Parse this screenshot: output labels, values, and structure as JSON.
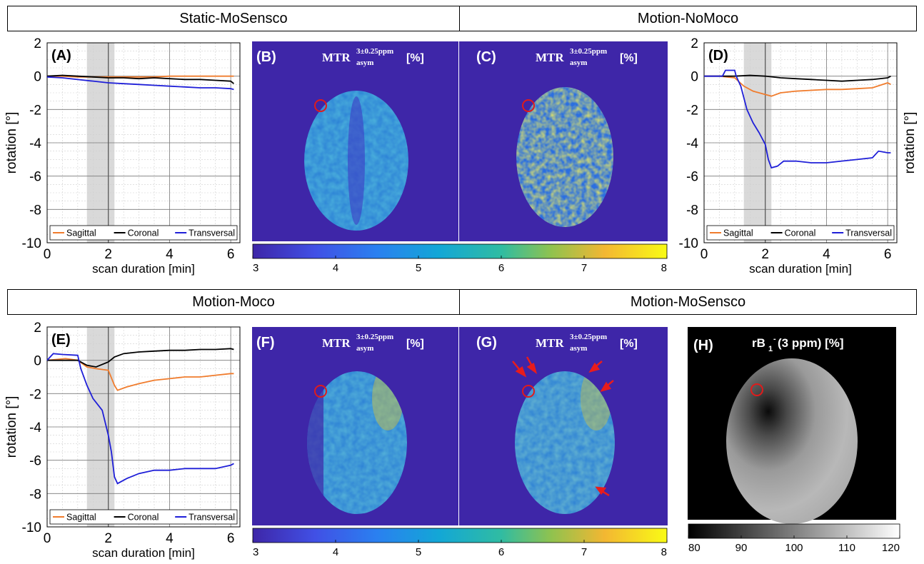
{
  "sections": [
    {
      "id": "top-left",
      "title": "Static-MoSensco"
    },
    {
      "id": "top-right",
      "title": "Motion-NoMoco"
    },
    {
      "id": "bottom-left",
      "title": "Motion-Moco"
    },
    {
      "id": "bottom-right",
      "title": "Motion-MoSensco"
    }
  ],
  "chart_data": [
    {
      "type": "line",
      "panel_label": "(A)",
      "xlabel": "scan duration [min]",
      "ylabel": "rotation [°]",
      "xlim": [
        0,
        6.3
      ],
      "ylim": [
        -10,
        2
      ],
      "xticks": [
        0,
        2,
        4,
        6
      ],
      "yticks": [
        2,
        0,
        -2,
        -4,
        -6,
        -8,
        -10
      ],
      "grid": true,
      "shaded_region": [
        1.3,
        2.2
      ],
      "marker_line": 2.0,
      "legend_position": "bottom",
      "series": [
        {
          "name": "Sagittal",
          "color": "#f07c2d",
          "x": [
            0,
            0.5,
            1,
            1.5,
            2,
            2.5,
            3,
            3.5,
            4,
            4.5,
            5,
            5.5,
            6,
            6.1
          ],
          "y": [
            0,
            0,
            -0.05,
            -0.05,
            -0.05,
            -0.05,
            -0.05,
            -0.05,
            0,
            0,
            0,
            0,
            0,
            0
          ]
        },
        {
          "name": "Coronal",
          "color": "#000000",
          "x": [
            0,
            0.5,
            1,
            1.5,
            2,
            2.5,
            3,
            3.5,
            4,
            4.5,
            5,
            5.5,
            6,
            6.1
          ],
          "y": [
            0,
            0.05,
            0,
            -0.05,
            -0.1,
            -0.1,
            -0.15,
            -0.1,
            -0.15,
            -0.2,
            -0.2,
            -0.25,
            -0.3,
            -0.45
          ]
        },
        {
          "name": "Transversal",
          "color": "#1f1fd8",
          "x": [
            0,
            0.5,
            1,
            1.5,
            2,
            2.5,
            3,
            3.5,
            4,
            4.5,
            5,
            5.5,
            6,
            6.1
          ],
          "y": [
            -0.05,
            -0.1,
            -0.2,
            -0.3,
            -0.4,
            -0.45,
            -0.5,
            -0.55,
            -0.6,
            -0.65,
            -0.7,
            -0.7,
            -0.75,
            -0.8
          ]
        }
      ]
    },
    {
      "type": "line",
      "panel_label": "(D)",
      "xlabel": "scan duration [min]",
      "ylabel": "rotation [°]",
      "xlim": [
        0,
        6.3
      ],
      "ylim": [
        -10,
        2
      ],
      "xticks": [
        0,
        2,
        4,
        6
      ],
      "yticks": [
        2,
        0,
        -2,
        -4,
        -6,
        -8,
        -10
      ],
      "grid": true,
      "shaded_region": [
        1.3,
        2.2
      ],
      "marker_line": 2.0,
      "legend_position": "bottom",
      "series": [
        {
          "name": "Sagittal",
          "color": "#f07c2d",
          "x": [
            0,
            0.5,
            1,
            1.3,
            1.6,
            2,
            2.2,
            2.5,
            3,
            3.5,
            4,
            4.5,
            5,
            5.5,
            6,
            6.1
          ],
          "y": [
            0,
            0,
            -0.1,
            -0.6,
            -0.9,
            -1.1,
            -1.2,
            -1.0,
            -0.9,
            -0.85,
            -0.8,
            -0.8,
            -0.75,
            -0.7,
            -0.4,
            -0.5
          ]
        },
        {
          "name": "Coronal",
          "color": "#000000",
          "x": [
            0,
            0.5,
            1,
            1.5,
            2,
            2.5,
            3,
            3.5,
            4,
            4.5,
            5,
            5.5,
            6,
            6.1
          ],
          "y": [
            0,
            0,
            0,
            0.05,
            0,
            -0.1,
            -0.15,
            -0.2,
            -0.25,
            -0.3,
            -0.25,
            -0.2,
            -0.1,
            0
          ]
        },
        {
          "name": "Transversal",
          "color": "#1f1fd8",
          "x": [
            0,
            0.3,
            0.6,
            0.7,
            1.0,
            1.05,
            1.2,
            1.4,
            1.6,
            1.8,
            2.0,
            2.1,
            2.2,
            2.4,
            2.6,
            3,
            3.5,
            4,
            4.5,
            5,
            5.5,
            5.7,
            6,
            6.1
          ],
          "y": [
            0,
            0,
            0,
            0.35,
            0.35,
            0,
            -0.6,
            -2.0,
            -2.8,
            -3.4,
            -4.1,
            -5.0,
            -5.5,
            -5.4,
            -5.1,
            -5.1,
            -5.2,
            -5.2,
            -5.1,
            -5.0,
            -4.9,
            -4.5,
            -4.6,
            -4.6
          ]
        }
      ]
    },
    {
      "type": "line",
      "panel_label": "(E)",
      "xlabel": "scan duration [min]",
      "ylabel": "rotation [°]",
      "xlim": [
        0,
        6.3
      ],
      "ylim": [
        -10,
        2
      ],
      "xticks": [
        0,
        2,
        4,
        6
      ],
      "yticks": [
        2,
        0,
        -2,
        -4,
        -6,
        -8,
        -10
      ],
      "grid": true,
      "shaded_region": [
        1.3,
        2.2
      ],
      "marker_line": 2.0,
      "legend_position": "bottom",
      "series": [
        {
          "name": "Sagittal",
          "color": "#f07c2d",
          "x": [
            0,
            0.3,
            0.6,
            1,
            1.3,
            1.6,
            2,
            2.2,
            2.3,
            2.6,
            3,
            3.5,
            4,
            4.5,
            5,
            5.5,
            6,
            6.1
          ],
          "y": [
            0,
            0.05,
            0.1,
            0,
            -0.4,
            -0.5,
            -0.6,
            -1.5,
            -1.8,
            -1.6,
            -1.4,
            -1.2,
            -1.1,
            -1.0,
            -1.0,
            -0.9,
            -0.8,
            -0.8
          ]
        },
        {
          "name": "Coronal",
          "color": "#000000",
          "x": [
            0,
            0.5,
            1,
            1.3,
            1.6,
            2,
            2.2,
            2.5,
            3,
            3.5,
            4,
            4.5,
            5,
            5.5,
            6,
            6.1
          ],
          "y": [
            0,
            0,
            0,
            -0.3,
            -0.4,
            -0.1,
            0.2,
            0.4,
            0.5,
            0.55,
            0.6,
            0.6,
            0.65,
            0.65,
            0.7,
            0.65
          ]
        },
        {
          "name": "Transversal",
          "color": "#1f1fd8",
          "x": [
            0,
            0.2,
            0.5,
            1.0,
            1.1,
            1.3,
            1.5,
            1.8,
            2.0,
            2.1,
            2.2,
            2.3,
            2.6,
            3,
            3.5,
            4,
            4.5,
            5,
            5.5,
            6,
            6.1
          ],
          "y": [
            0,
            0.4,
            0.35,
            0.3,
            -0.5,
            -1.5,
            -2.3,
            -3.0,
            -4.5,
            -5.5,
            -7.0,
            -7.4,
            -7.1,
            -6.8,
            -6.6,
            -6.6,
            -6.5,
            -6.5,
            -6.5,
            -6.3,
            -6.2
          ]
        }
      ]
    },
    {
      "type": "heatmap",
      "panel_label": "(B)",
      "title": "MTR asym 3±0.25ppm [%]"
    },
    {
      "type": "heatmap",
      "panel_label": "(C)",
      "title": "MTR asym 3±0.25ppm [%]"
    },
    {
      "type": "heatmap",
      "panel_label": "(F)",
      "title": "MTR asym 3±0.25ppm [%]"
    },
    {
      "type": "heatmap",
      "panel_label": "(G)",
      "title": "MTR asym 3±0.25ppm [%]"
    },
    {
      "type": "heatmap",
      "panel_label": "(H)",
      "title": "rB1-(3 ppm) [%]"
    }
  ],
  "colorbars": {
    "mtr": {
      "ticks": [
        "3",
        "4",
        "5",
        "6",
        "7",
        "8"
      ]
    },
    "rb1": {
      "ticks": [
        "80",
        "90",
        "100",
        "110",
        "120"
      ]
    }
  },
  "mtr_title": {
    "main": "MTR",
    "sup": "3±0.25ppm",
    "sub": "asym",
    "unit": "[%]"
  },
  "rb1_title": {
    "main": "rB",
    "sub": "1",
    "sup": "-",
    "rest": "(3 ppm) [%]"
  },
  "colors": {
    "map_background": "#3e26a8",
    "ring": "#e01b1b",
    "arrow": "#e81c1c"
  }
}
